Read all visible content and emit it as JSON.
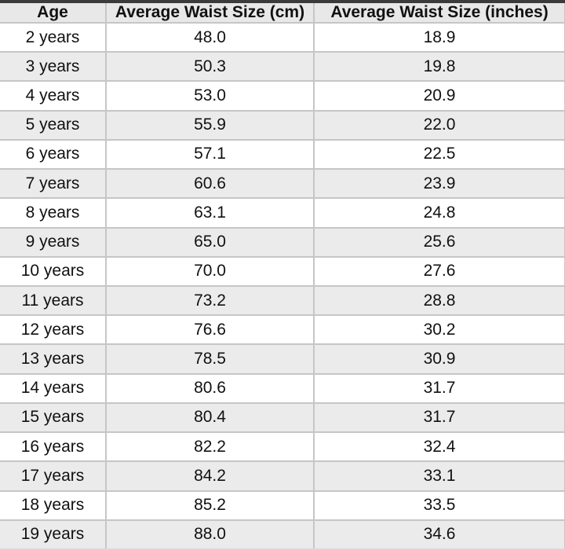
{
  "chart_data": {
    "type": "table",
    "columns": [
      "Age",
      "Average Waist Size (cm)",
      "Average Waist Size (inches)"
    ],
    "rows": [
      [
        "2 years",
        "48.0",
        "18.9"
      ],
      [
        "3 years",
        "50.3",
        "19.8"
      ],
      [
        "4 years",
        "53.0",
        "20.9"
      ],
      [
        "5 years",
        "55.9",
        "22.0"
      ],
      [
        "6 years",
        "57.1",
        "22.5"
      ],
      [
        "7 years",
        "60.6",
        "23.9"
      ],
      [
        "8 years",
        "63.1",
        "24.8"
      ],
      [
        "9 years",
        "65.0",
        "25.6"
      ],
      [
        "10 years",
        "70.0",
        "27.6"
      ],
      [
        "11 years",
        "73.2",
        "28.8"
      ],
      [
        "12 years",
        "76.6",
        "30.2"
      ],
      [
        "13 years",
        "78.5",
        "30.9"
      ],
      [
        "14 years",
        "80.6",
        "31.7"
      ],
      [
        "15 years",
        "80.4",
        "31.7"
      ],
      [
        "16 years",
        "82.2",
        "32.4"
      ],
      [
        "17 years",
        "84.2",
        "33.1"
      ],
      [
        "18 years",
        "85.2",
        "33.5"
      ],
      [
        "19 years",
        "88.0",
        "34.6"
      ]
    ],
    "layout": {
      "header_position": "top",
      "alternating_rows": true,
      "grid": true
    }
  },
  "colors": {
    "header_bg": "#e8e8e8",
    "row_bg": "#ffffff",
    "row_alt_bg": "#ebebeb",
    "border": "#c6c6c6",
    "text": "#111111",
    "top_bar": "#3b3b3b"
  }
}
